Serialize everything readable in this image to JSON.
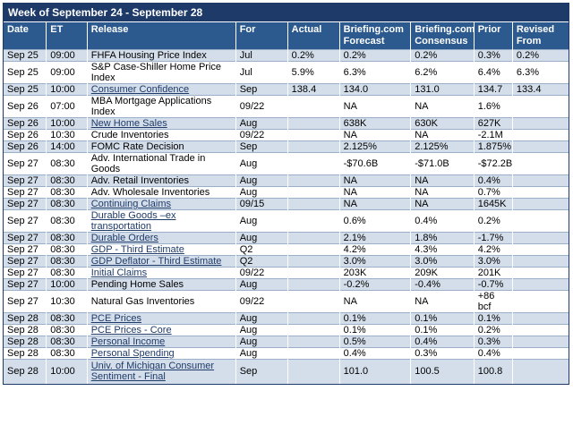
{
  "title": "Week of September 24 - September 28",
  "columns": [
    "Date",
    "ET",
    "Release",
    "For",
    "Actual",
    "Briefing.com Forecast",
    "Briefing.com Consensus",
    "Prior",
    "Revised From"
  ],
  "rows": [
    {
      "date": "Sep 25",
      "et": "09:00",
      "release": "FHFA Housing Price Index",
      "link": false,
      "for": "Jul",
      "actual": "0.2%",
      "forecast": "0.2%",
      "consensus": "0.2%",
      "prior": "0.3%",
      "revised": "0.2%",
      "h": "single"
    },
    {
      "date": "Sep 25",
      "et": "09:00",
      "release": "S&P Case-Shiller Home Price Index",
      "link": false,
      "for": "Jul",
      "actual": "5.9%",
      "forecast": "6.3%",
      "consensus": "6.2%",
      "prior": "6.4%",
      "revised": "6.3%",
      "h": "double"
    },
    {
      "date": "Sep 25",
      "et": "10:00",
      "release": "Consumer Confidence",
      "link": true,
      "for": "Sep",
      "actual": "138.4",
      "forecast": "134.0",
      "consensus": "131.0",
      "prior": "134.7",
      "revised": "133.4",
      "h": "single"
    },
    {
      "date": "Sep 26",
      "et": "07:00",
      "release": "MBA Mortgage Applications Index",
      "link": false,
      "for": "09/22",
      "actual": "",
      "forecast": "NA",
      "consensus": "NA",
      "prior": "1.6%",
      "revised": "",
      "h": "double"
    },
    {
      "date": "Sep 26",
      "et": "10:00",
      "release": "New Home Sales",
      "link": true,
      "for": "Aug",
      "actual": "",
      "forecast": "638K",
      "consensus": "630K",
      "prior": "627K",
      "revised": "",
      "h": "single"
    },
    {
      "date": "Sep 26",
      "et": "10:30",
      "release": "Crude Inventories",
      "link": false,
      "for": "09/22",
      "actual": "",
      "forecast": "NA",
      "consensus": "NA",
      "prior": "-2.1M",
      "revised": "",
      "h": "single"
    },
    {
      "date": "Sep 26",
      "et": "14:00",
      "release": "FOMC Rate Decision",
      "link": false,
      "for": "Sep",
      "actual": "",
      "forecast": "2.125%",
      "consensus": "2.125%",
      "prior": "1.875%",
      "revised": "",
      "h": "single"
    },
    {
      "date": "Sep 27",
      "et": "08:30",
      "release": "Adv. International Trade in Goods",
      "link": false,
      "for": "Aug",
      "actual": "",
      "forecast": "-$70.6B",
      "consensus": "-$71.0B",
      "prior": "-$72.2B",
      "revised": "",
      "h": "double"
    },
    {
      "date": "Sep 27",
      "et": "08:30",
      "release": "Adv. Retail Inventories",
      "link": false,
      "for": "Aug",
      "actual": "",
      "forecast": "NA",
      "consensus": "NA",
      "prior": "0.4%",
      "revised": "",
      "h": "single"
    },
    {
      "date": "Sep 27",
      "et": "08:30",
      "release": "Adv. Wholesale Inventories",
      "link": false,
      "for": "Aug",
      "actual": "",
      "forecast": "NA",
      "consensus": "NA",
      "prior": "0.7%",
      "revised": "",
      "h": "single"
    },
    {
      "date": "Sep 27",
      "et": "08:30",
      "release": "Continuing Claims",
      "link": true,
      "for": "09/15",
      "actual": "",
      "forecast": "NA",
      "consensus": "NA",
      "prior": "1645K",
      "revised": "",
      "h": "single"
    },
    {
      "date": "Sep 27",
      "et": "08:30",
      "release": "Durable Goods –ex transportation",
      "link": true,
      "for": "Aug",
      "actual": "",
      "forecast": "0.6%",
      "consensus": "0.4%",
      "prior": "0.2%",
      "revised": "",
      "h": "double"
    },
    {
      "date": "Sep 27",
      "et": "08:30",
      "release": "Durable Orders",
      "link": true,
      "for": "Aug",
      "actual": "",
      "forecast": "2.1%",
      "consensus": "1.8%",
      "prior": "-1.7%",
      "revised": "",
      "h": "single"
    },
    {
      "date": "Sep 27",
      "et": "08:30",
      "release": "GDP - Third Estimate",
      "link": true,
      "for": "Q2",
      "actual": "",
      "forecast": "4.2%",
      "consensus": "4.3%",
      "prior": "4.2%",
      "revised": "",
      "h": "single"
    },
    {
      "date": "Sep 27",
      "et": "08:30",
      "release": "GDP Deflator - Third Estimate",
      "link": true,
      "for": "Q2",
      "actual": "",
      "forecast": "3.0%",
      "consensus": "3.0%",
      "prior": "3.0%",
      "revised": "",
      "h": "single"
    },
    {
      "date": "Sep 27",
      "et": "08:30",
      "release": "Initial Claims",
      "link": true,
      "for": "09/22",
      "actual": "",
      "forecast": "203K",
      "consensus": "209K",
      "prior": "201K",
      "revised": "",
      "h": "single"
    },
    {
      "date": "Sep 27",
      "et": "10:00",
      "release": "Pending Home Sales",
      "link": false,
      "for": "Aug",
      "actual": "",
      "forecast": "-0.2%",
      "consensus": "-0.4%",
      "prior": "-0.7%",
      "revised": "",
      "h": "single"
    },
    {
      "date": "Sep 27",
      "et": "10:30",
      "release": "Natural Gas Inventories",
      "link": false,
      "for": "09/22",
      "actual": "",
      "forecast": "NA",
      "consensus": "NA",
      "prior": "+86 bcf",
      "revised": "",
      "h": "single"
    },
    {
      "date": "Sep 28",
      "et": "08:30",
      "release": "PCE Prices",
      "link": true,
      "for": "Aug",
      "actual": "",
      "forecast": "0.1%",
      "consensus": "0.1%",
      "prior": "0.1%",
      "revised": "",
      "h": "single"
    },
    {
      "date": "Sep 28",
      "et": "08:30",
      "release": "PCE Prices - Core",
      "link": true,
      "for": "Aug",
      "actual": "",
      "forecast": "0.1%",
      "consensus": "0.1%",
      "prior": "0.2%",
      "revised": "",
      "h": "single"
    },
    {
      "date": "Sep 28",
      "et": "08:30",
      "release": "Personal Income",
      "link": true,
      "for": "Aug",
      "actual": "",
      "forecast": "0.5%",
      "consensus": "0.4%",
      "prior": "0.3%",
      "revised": "",
      "h": "single"
    },
    {
      "date": "Sep 28",
      "et": "08:30",
      "release": "Personal Spending",
      "link": true,
      "for": "Aug",
      "actual": "",
      "forecast": "0.4%",
      "consensus": "0.3%",
      "prior": "0.4%",
      "revised": "",
      "h": "single"
    },
    {
      "date": "Sep 28",
      "et": "10:00",
      "release": "Univ. of Michigan Consumer Sentiment - Final",
      "link": true,
      "for": "Sep",
      "actual": "",
      "forecast": "101.0",
      "consensus": "100.5",
      "prior": "100.8",
      "revised": "",
      "h": "tall"
    }
  ],
  "colors": {
    "header": "#1e3a68",
    "column_header": "#2c5a8e",
    "stripe": "#d4deea",
    "link": "#1e3a68"
  }
}
